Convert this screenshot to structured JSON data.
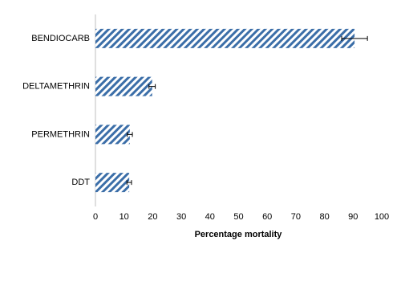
{
  "chart_data": {
    "type": "hbar",
    "xlabel": "Percentage mortality",
    "categories": [
      "BENDIOCARB",
      "DELTAMETHRIN",
      "PERMETHRIN",
      "DDT"
    ],
    "series": [
      {
        "color": "#3b6ea8",
        "values": [
          90.5,
          19.8,
          12,
          11.8
        ],
        "errors": [
          4.5,
          1.1,
          0.9,
          0.8
        ]
      }
    ],
    "xlim": [
      0,
      100
    ],
    "xticks": [
      0,
      10,
      20,
      30,
      40,
      50,
      60,
      70,
      80,
      90,
      100
    ]
  }
}
